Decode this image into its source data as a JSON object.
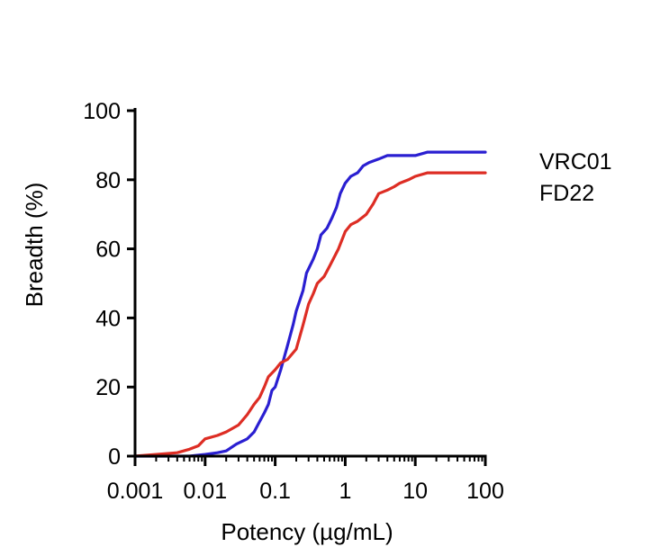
{
  "chart_data": {
    "type": "line",
    "title": "",
    "xlabel": "Potency (µg/mL)",
    "ylabel": "Breadth (%)",
    "xscale": "log",
    "xlim": [
      0.001,
      100
    ],
    "ylim": [
      0,
      100
    ],
    "x_ticks": [
      0.001,
      0.01,
      0.1,
      1,
      10,
      100
    ],
    "x_tick_labels": [
      "0.001",
      "0.01",
      "0.1",
      "1",
      "10",
      "100"
    ],
    "y_ticks": [
      0,
      20,
      40,
      60,
      80,
      100
    ],
    "y_tick_labels": [
      "0",
      "20",
      "40",
      "60",
      "80",
      "100"
    ],
    "legend_position": "right",
    "series": [
      {
        "name": "VRC01",
        "color": "#2a1fd1",
        "points": [
          [
            0.001,
            0
          ],
          [
            0.006,
            0
          ],
          [
            0.01,
            0.5
          ],
          [
            0.015,
            1
          ],
          [
            0.02,
            1.5
          ],
          [
            0.028,
            3.5
          ],
          [
            0.04,
            5
          ],
          [
            0.05,
            7
          ],
          [
            0.06,
            10
          ],
          [
            0.07,
            12.5
          ],
          [
            0.08,
            15
          ],
          [
            0.09,
            19
          ],
          [
            0.1,
            20
          ],
          [
            0.12,
            25
          ],
          [
            0.15,
            32
          ],
          [
            0.18,
            38
          ],
          [
            0.2,
            42
          ],
          [
            0.25,
            48
          ],
          [
            0.28,
            53
          ],
          [
            0.35,
            57
          ],
          [
            0.4,
            60
          ],
          [
            0.45,
            64
          ],
          [
            0.55,
            66
          ],
          [
            0.65,
            69
          ],
          [
            0.75,
            72
          ],
          [
            0.85,
            76
          ],
          [
            1,
            79
          ],
          [
            1.2,
            81
          ],
          [
            1.5,
            82
          ],
          [
            1.8,
            84
          ],
          [
            2.2,
            85
          ],
          [
            3,
            86
          ],
          [
            4,
            87
          ],
          [
            6,
            87
          ],
          [
            10,
            87
          ],
          [
            15,
            88
          ],
          [
            30,
            88
          ],
          [
            100,
            88
          ]
        ]
      },
      {
        "name": "FD22",
        "color": "#dd2d24",
        "points": [
          [
            0.001,
            0
          ],
          [
            0.002,
            0.5
          ],
          [
            0.004,
            1
          ],
          [
            0.006,
            2
          ],
          [
            0.008,
            3
          ],
          [
            0.01,
            5
          ],
          [
            0.015,
            6
          ],
          [
            0.02,
            7
          ],
          [
            0.03,
            9
          ],
          [
            0.04,
            12
          ],
          [
            0.05,
            15
          ],
          [
            0.06,
            17
          ],
          [
            0.07,
            20
          ],
          [
            0.08,
            23
          ],
          [
            0.1,
            25
          ],
          [
            0.12,
            27
          ],
          [
            0.15,
            28
          ],
          [
            0.2,
            31
          ],
          [
            0.25,
            38
          ],
          [
            0.3,
            44
          ],
          [
            0.35,
            47
          ],
          [
            0.4,
            50
          ],
          [
            0.5,
            52
          ],
          [
            0.6,
            55
          ],
          [
            0.8,
            60
          ],
          [
            1,
            65
          ],
          [
            1.2,
            67
          ],
          [
            1.5,
            68
          ],
          [
            2,
            70
          ],
          [
            2.5,
            73
          ],
          [
            3,
            76
          ],
          [
            4,
            77
          ],
          [
            5,
            78
          ],
          [
            6,
            79
          ],
          [
            8,
            80
          ],
          [
            10,
            81
          ],
          [
            15,
            82
          ],
          [
            30,
            82
          ],
          [
            100,
            82
          ]
        ]
      }
    ]
  }
}
